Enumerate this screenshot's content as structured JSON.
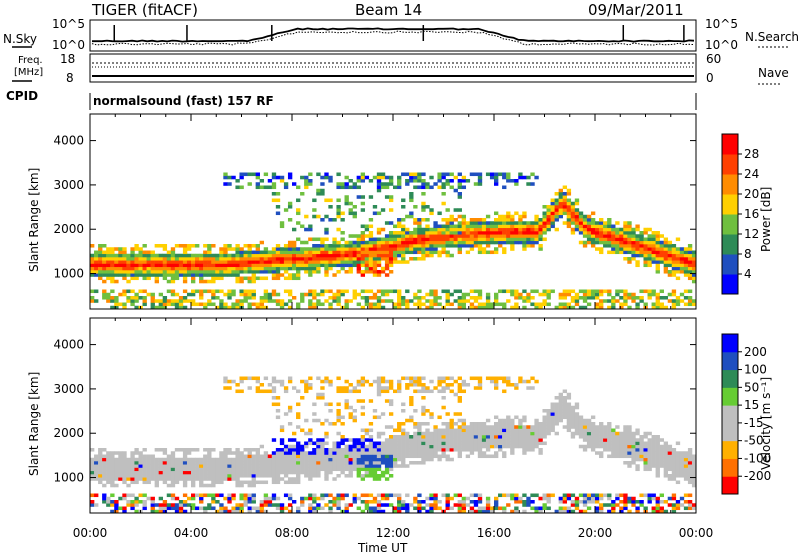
{
  "header": {
    "radar": "TIGER (fitACF)",
    "beam": "Beam 14",
    "date": "09/Mar/2011"
  },
  "summary": {
    "nsky_label": "N.Sky",
    "nsky_ticks": [
      "10^5",
      "10^0"
    ],
    "nsearch_label": "N.Search",
    "nsearch_ticks": [
      "10^5",
      "10^0"
    ],
    "freq_label_1": "Freq.",
    "freq_label_2": "[MHz]",
    "freq_ticks": [
      "18",
      "8"
    ],
    "nave_label": "Nave",
    "nave_ticks": [
      "60",
      "0"
    ],
    "cpid_label": "CPID",
    "cpid_text": "normalsound (fast) 157 RF"
  },
  "colors": {
    "power_scale": [
      "#0000ff",
      "#1f4fbf",
      "#2e8b57",
      "#6fbf3f",
      "#ffd000",
      "#ff8c00",
      "#ff4000",
      "#ff0000"
    ],
    "velocity_scale": [
      "#0000ff",
      "#1f4fbf",
      "#2e8b57",
      "#66cc33",
      "#bfbfbf",
      "#bfbfbf",
      "#ffb000",
      "#ff7000",
      "#ff0000"
    ]
  },
  "chart_data": [
    {
      "type": "heatmap",
      "parameter": "power",
      "xlabel": "Time UT",
      "ylabel": "Slant Range [km]",
      "x_ticks": [
        "00:00",
        "04:00",
        "08:00",
        "12:00",
        "16:00",
        "20:00",
        "00:00"
      ],
      "y_ticks": [
        "1000",
        "2000",
        "3000",
        "4000"
      ],
      "ylim": [
        200,
        4600
      ],
      "colorbar_label": "Power [dB]",
      "colorbar_ticks": [
        "4",
        "8",
        "12",
        "16",
        "20",
        "24",
        "28"
      ],
      "colorbar_range": [
        0,
        32
      ]
    },
    {
      "type": "heatmap",
      "parameter": "velocity",
      "xlabel": "Time UT",
      "ylabel": "Slant Range [km]",
      "x_ticks": [
        "00:00",
        "04:00",
        "08:00",
        "12:00",
        "16:00",
        "20:00",
        "00:00"
      ],
      "y_ticks": [
        "1000",
        "2000",
        "3000",
        "4000"
      ],
      "ylim": [
        200,
        4600
      ],
      "colorbar_label": "Velocity [m s⁻¹]",
      "colorbar_ticks": [
        "200",
        "100",
        "50",
        "15",
        "-15",
        "-50",
        "-100",
        "-200"
      ]
    }
  ]
}
